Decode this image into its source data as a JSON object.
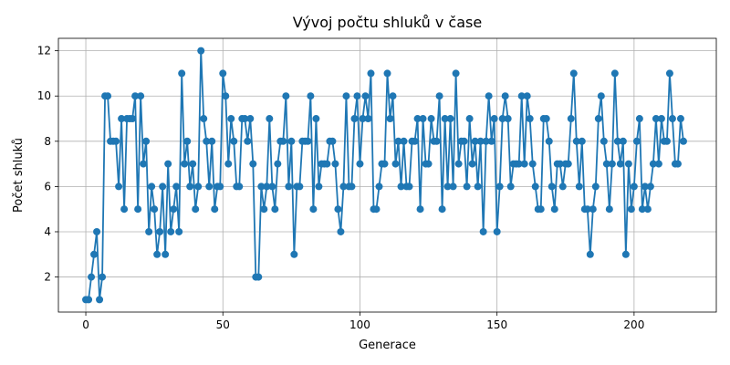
{
  "chart_data": {
    "type": "line",
    "title": "Vývoj počtu shluků v čase",
    "xlabel": "Generace",
    "ylabel": "Počet shluků",
    "xlim": [
      -10,
      230
    ],
    "ylim": [
      0.45,
      12.55
    ],
    "xticks": [
      0,
      50,
      100,
      150,
      200
    ],
    "yticks": [
      2,
      4,
      6,
      8,
      10,
      12
    ],
    "grid": true,
    "marker": "circle",
    "color": "#1f77b4",
    "x_start": 0,
    "x_step": 1,
    "values": [
      1,
      1,
      2,
      3,
      4,
      1,
      2,
      10,
      10,
      8,
      8,
      8,
      6,
      9,
      5,
      9,
      9,
      9,
      10,
      5,
      10,
      7,
      8,
      4,
      6,
      5,
      3,
      4,
      6,
      3,
      7,
      4,
      5,
      6,
      4,
      11,
      7,
      8,
      6,
      7,
      5,
      6,
      12,
      9,
      8,
      6,
      8,
      5,
      6,
      6,
      11,
      10,
      7,
      9,
      8,
      6,
      6,
      9,
      9,
      8,
      9,
      7,
      2,
      2,
      6,
      5,
      6,
      9,
      6,
      5,
      7,
      8,
      8,
      10,
      6,
      8,
      3,
      6,
      6,
      8,
      8,
      8,
      10,
      5,
      9,
      6,
      7,
      7,
      7,
      8,
      8,
      7,
      5,
      4,
      6,
      10,
      6,
      6,
      9,
      10,
      7,
      9,
      10,
      9,
      11,
      5,
      5,
      6,
      7,
      7,
      11,
      9,
      10,
      7,
      8,
      6,
      8,
      6,
      6,
      8,
      8,
      9,
      5,
      9,
      7,
      7,
      9,
      8,
      8,
      10,
      5,
      9,
      6,
      9,
      6,
      11,
      7,
      8,
      8,
      6,
      9,
      7,
      8,
      6,
      8,
      4,
      8,
      10,
      8,
      9,
      4,
      6,
      9,
      10,
      9,
      6,
      7,
      7,
      7,
      10,
      7,
      10,
      9,
      7,
      6,
      5,
      5,
      9,
      9,
      8,
      6,
      5,
      7,
      7,
      6,
      7,
      7,
      9,
      11,
      8,
      6,
      8,
      5,
      5,
      3,
      5,
      6,
      9,
      10,
      8,
      7,
      5,
      7,
      11,
      8,
      7,
      8,
      3,
      7,
      5,
      6,
      8,
      9,
      5,
      6,
      5,
      6,
      7,
      9,
      7,
      9,
      8,
      8,
      11,
      9,
      7,
      7,
      9,
      8
    ]
  }
}
